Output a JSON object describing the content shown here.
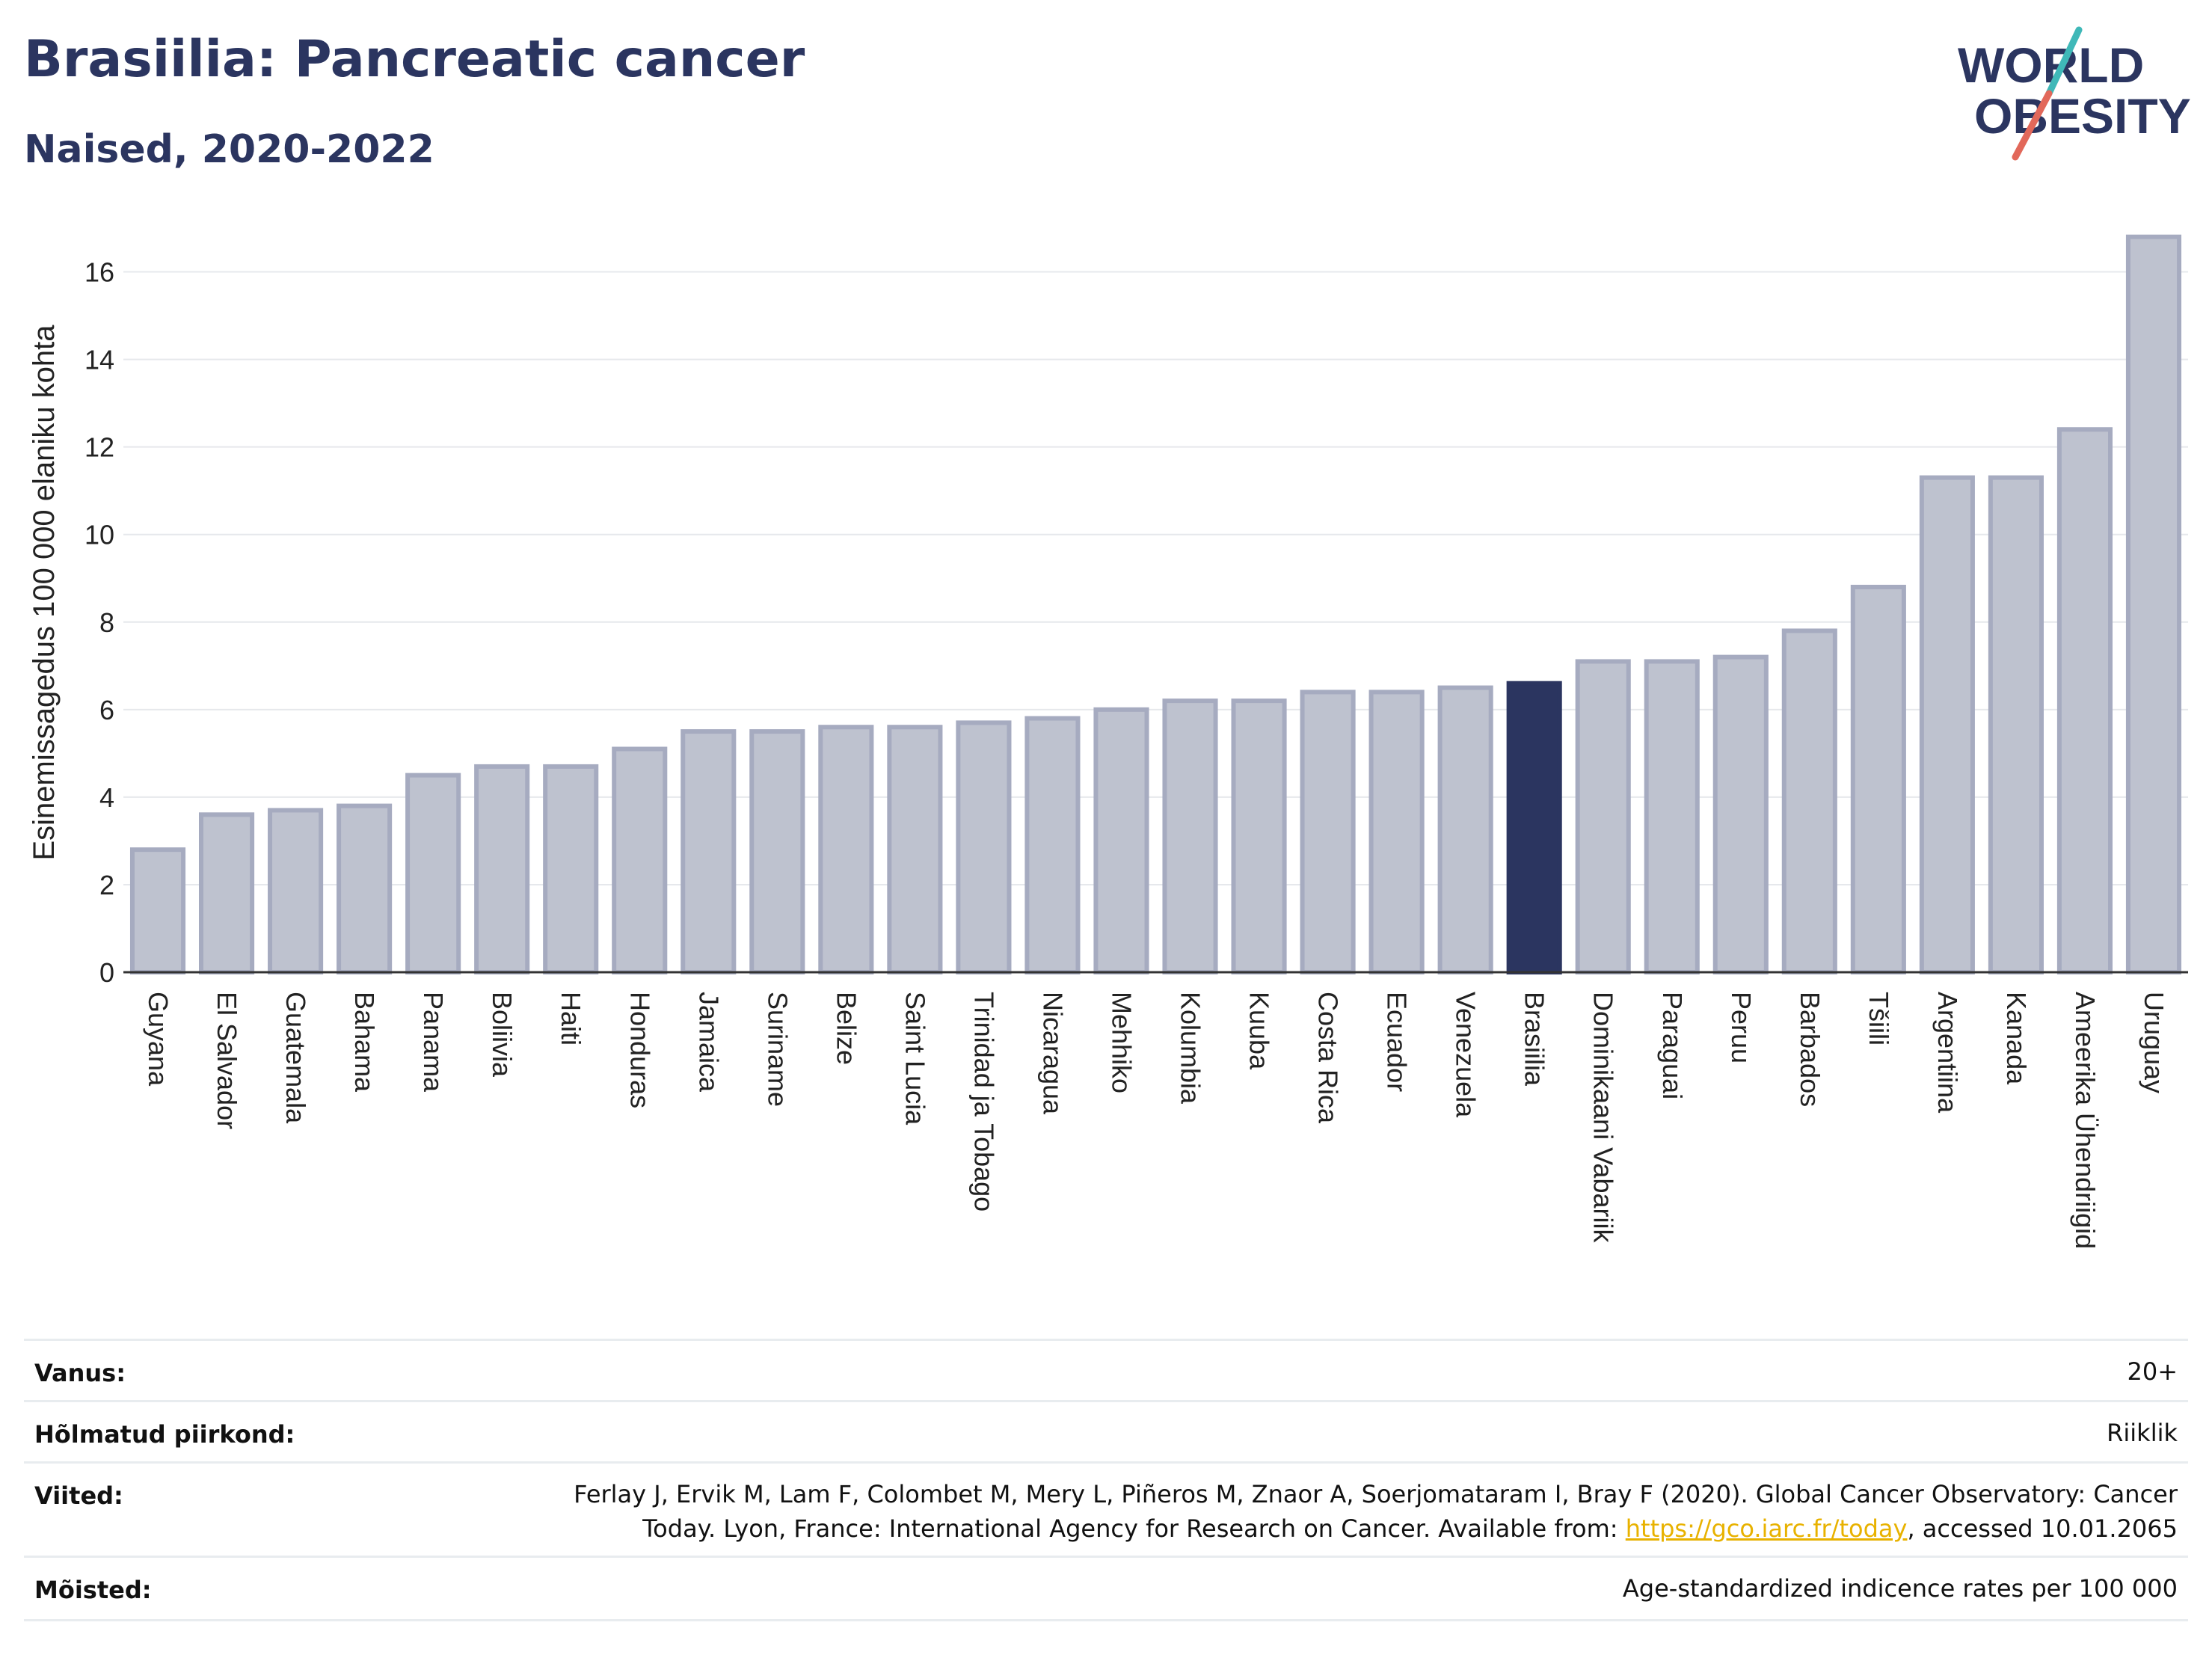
{
  "header": {
    "title": "Brasiilia: Pancreatic cancer",
    "subtitle": "Naised, 2020-2022"
  },
  "logo": {
    "line1": "WORLD",
    "line2": "OBESITY",
    "icon": "world-obesity-logo"
  },
  "colors": {
    "bar": "#bec2cf",
    "bar_border": "#a6abc0",
    "highlight": "#2b3560",
    "title": "#2b3560",
    "grid": "#e6e8ec",
    "link": "#e8b200"
  },
  "chart_data": {
    "type": "bar",
    "ylabel": "Esinemissagedus 100 000 elaniku kohta",
    "ylim": [
      0,
      17
    ],
    "yticks": [
      0,
      2,
      4,
      6,
      8,
      10,
      12,
      14,
      16
    ],
    "grid": true,
    "highlight": "Brasiilia",
    "categories": [
      "Guyana",
      "El Salvador",
      "Guatemala",
      "Bahama",
      "Panama",
      "Boliivia",
      "Haiti",
      "Honduras",
      "Jamaica",
      "Suriname",
      "Belize",
      "Saint Lucia",
      "Trinidad ja Tobago",
      "Nicaragua",
      "Mehhiko",
      "Kolumbia",
      "Kuuba",
      "Costa Rica",
      "Ecuador",
      "Venezuela",
      "Brasiilia",
      "Dominikaani Vabariik",
      "Paraguai",
      "Peruu",
      "Barbados",
      "Tšiili",
      "Argentiina",
      "Kanada",
      "Ameerika Ühendriigid",
      "Uruguay"
    ],
    "values": [
      2.8,
      3.6,
      3.7,
      3.8,
      4.5,
      4.7,
      4.7,
      5.1,
      5.5,
      5.5,
      5.6,
      5.6,
      5.7,
      5.8,
      6.0,
      6.2,
      6.2,
      6.4,
      6.4,
      6.5,
      6.6,
      7.1,
      7.1,
      7.2,
      7.8,
      8.8,
      11.3,
      11.3,
      12.4,
      16.8
    ]
  },
  "info": {
    "age_label": "Vanus:",
    "age_value": "20+",
    "area_label": "Hõlmatud piirkond:",
    "area_value": "Riiklik",
    "ref_label": "Viited:",
    "ref_line1": "Ferlay J, Ervik M, Lam F, Colombet M, Mery L, Piñeros M, Znaor A, Soerjomataram I, Bray F (2020). Global Cancer Observatory: Cancer",
    "ref_line2_pre": "Today. Lyon, France: International Agency for Research on Cancer. Available from: ",
    "ref_link": "https://gco.iarc.fr/today",
    "ref_line2_post": ", accessed 10.01.2065",
    "def_label": "Mõisted:",
    "def_value": "Age-standardized indicence rates per 100 000"
  }
}
